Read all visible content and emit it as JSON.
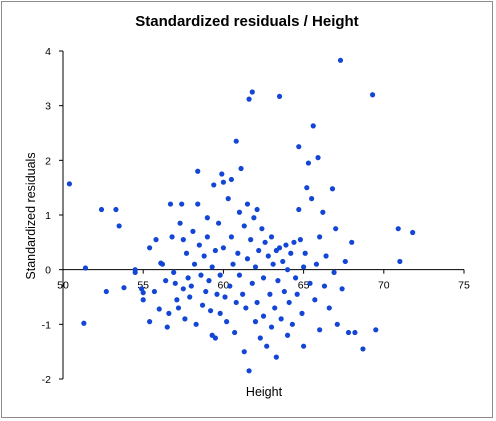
{
  "chart_data": {
    "type": "scatter",
    "title": "Standardized residuals / Height",
    "xlabel": "Height",
    "ylabel": "Standardized residuals",
    "xlim": [
      50,
      75
    ],
    "ylim": [
      -2,
      4
    ],
    "xticks": [
      50,
      55,
      60,
      65,
      70,
      75
    ],
    "yticks": [
      -2,
      -1,
      0,
      1,
      2,
      3,
      4
    ],
    "grid": false,
    "legend": "none",
    "point_color": "#1446d6",
    "points": [
      [
        50.4,
        1.57
      ],
      [
        51.4,
        0.03
      ],
      [
        51.3,
        -0.98
      ],
      [
        52.4,
        1.1
      ],
      [
        52.7,
        -0.4
      ],
      [
        53.3,
        1.1
      ],
      [
        53.5,
        0.8
      ],
      [
        53.8,
        -0.33
      ],
      [
        54.5,
        -0.05
      ],
      [
        54.5,
        0.0
      ],
      [
        54.9,
        -0.35
      ],
      [
        55.0,
        -0.42
      ],
      [
        55.0,
        -0.55
      ],
      [
        55.4,
        0.4
      ],
      [
        55.4,
        -0.95
      ],
      [
        55.7,
        -0.4
      ],
      [
        55.8,
        0.55
      ],
      [
        56.0,
        -0.72
      ],
      [
        56.1,
        0.12
      ],
      [
        56.2,
        0.1
      ],
      [
        56.4,
        -0.2
      ],
      [
        56.5,
        -1.05
      ],
      [
        56.6,
        -0.8
      ],
      [
        56.7,
        1.2
      ],
      [
        56.8,
        0.6
      ],
      [
        56.9,
        -0.05
      ],
      [
        57.0,
        -0.25
      ],
      [
        57.1,
        -0.55
      ],
      [
        57.2,
        -0.7
      ],
      [
        57.3,
        0.85
      ],
      [
        57.4,
        1.2
      ],
      [
        57.5,
        0.55
      ],
      [
        57.5,
        -0.35
      ],
      [
        57.6,
        -0.9
      ],
      [
        57.7,
        0.3
      ],
      [
        57.8,
        -0.15
      ],
      [
        57.9,
        -0.5
      ],
      [
        58.0,
        -0.3
      ],
      [
        58.1,
        0.7
      ],
      [
        58.2,
        0.1
      ],
      [
        58.3,
        -1.0
      ],
      [
        58.4,
        1.8
      ],
      [
        58.4,
        1.2
      ],
      [
        58.5,
        0.45
      ],
      [
        58.6,
        -0.1
      ],
      [
        58.7,
        -0.65
      ],
      [
        58.8,
        0.25
      ],
      [
        58.9,
        -0.4
      ],
      [
        59.0,
        0.95
      ],
      [
        59.0,
        0.6
      ],
      [
        59.1,
        -0.2
      ],
      [
        59.2,
        -0.75
      ],
      [
        59.3,
        0.05
      ],
      [
        59.3,
        -1.2
      ],
      [
        59.4,
        1.55
      ],
      [
        59.5,
        0.35
      ],
      [
        59.5,
        -1.25
      ],
      [
        59.6,
        -0.45
      ],
      [
        59.7,
        0.85
      ],
      [
        59.8,
        -0.1
      ],
      [
        59.8,
        -0.8
      ],
      [
        59.9,
        1.75
      ],
      [
        60.0,
        1.6
      ],
      [
        60.0,
        0.4
      ],
      [
        60.1,
        -0.5
      ],
      [
        60.2,
        -0.95
      ],
      [
        60.3,
        1.3
      ],
      [
        60.4,
        -0.3
      ],
      [
        60.5,
        1.65
      ],
      [
        60.5,
        0.6
      ],
      [
        60.6,
        0.1
      ],
      [
        60.7,
        -1.15
      ],
      [
        60.8,
        -0.6
      ],
      [
        60.8,
        2.35
      ],
      [
        60.9,
        0.3
      ],
      [
        61.0,
        1.05
      ],
      [
        61.0,
        -0.1
      ],
      [
        61.1,
        1.85
      ],
      [
        61.2,
        -0.45
      ],
      [
        61.3,
        0.8
      ],
      [
        61.3,
        -1.5
      ],
      [
        61.4,
        -0.7
      ],
      [
        61.5,
        1.2
      ],
      [
        61.5,
        0.2
      ],
      [
        61.6,
        3.12
      ],
      [
        61.6,
        -1.85
      ],
      [
        61.7,
        0.55
      ],
      [
        61.8,
        3.25
      ],
      [
        61.8,
        -0.25
      ],
      [
        61.9,
        0.95
      ],
      [
        62.0,
        -0.95
      ],
      [
        62.0,
        0.05
      ],
      [
        62.1,
        1.1
      ],
      [
        62.1,
        -0.6
      ],
      [
        62.2,
        0.35
      ],
      [
        62.3,
        -1.25
      ],
      [
        62.4,
        0.75
      ],
      [
        62.5,
        -0.15
      ],
      [
        62.5,
        -0.85
      ],
      [
        62.6,
        0.5
      ],
      [
        62.7,
        -1.4
      ],
      [
        62.8,
        0.25
      ],
      [
        62.9,
        -0.45
      ],
      [
        63.0,
        0.6
      ],
      [
        63.0,
        -1.05
      ],
      [
        63.1,
        0.1
      ],
      [
        63.2,
        -0.7
      ],
      [
        63.3,
        0.35
      ],
      [
        63.3,
        -1.6
      ],
      [
        63.4,
        -0.2
      ],
      [
        63.5,
        0.4
      ],
      [
        63.5,
        3.17
      ],
      [
        63.6,
        -0.9
      ],
      [
        63.7,
        0.15
      ],
      [
        63.8,
        -0.4
      ],
      [
        63.9,
        0.45
      ],
      [
        64.0,
        -1.2
      ],
      [
        64.0,
        0.0
      ],
      [
        64.1,
        -0.6
      ],
      [
        64.2,
        0.3
      ],
      [
        64.3,
        -1.0
      ],
      [
        64.4,
        0.5
      ],
      [
        64.5,
        -0.15
      ],
      [
        64.6,
        -0.45
      ],
      [
        64.7,
        1.1
      ],
      [
        64.7,
        2.25
      ],
      [
        64.8,
        0.55
      ],
      [
        64.9,
        -0.8
      ],
      [
        65.0,
        0.05
      ],
      [
        65.0,
        -1.4
      ],
      [
        65.1,
        0.3
      ],
      [
        65.2,
        1.5
      ],
      [
        65.3,
        1.95
      ],
      [
        65.4,
        -0.25
      ],
      [
        65.5,
        1.3
      ],
      [
        65.6,
        2.63
      ],
      [
        65.7,
        -0.55
      ],
      [
        65.8,
        0.1
      ],
      [
        65.9,
        2.05
      ],
      [
        66.0,
        -1.1
      ],
      [
        66.0,
        0.6
      ],
      [
        66.2,
        1.05
      ],
      [
        66.3,
        -0.3
      ],
      [
        66.4,
        0.25
      ],
      [
        66.6,
        -0.7
      ],
      [
        66.8,
        1.48
      ],
      [
        66.9,
        -0.05
      ],
      [
        67.0,
        0.75
      ],
      [
        67.1,
        -1.0
      ],
      [
        67.3,
        3.83
      ],
      [
        67.4,
        -0.35
      ],
      [
        67.6,
        0.15
      ],
      [
        67.8,
        -1.15
      ],
      [
        68.0,
        0.5
      ],
      [
        68.2,
        -1.15
      ],
      [
        68.7,
        -1.45
      ],
      [
        69.3,
        3.2
      ],
      [
        69.5,
        -1.1
      ],
      [
        70.9,
        0.75
      ],
      [
        71.0,
        0.15
      ],
      [
        71.8,
        0.68
      ]
    ]
  }
}
